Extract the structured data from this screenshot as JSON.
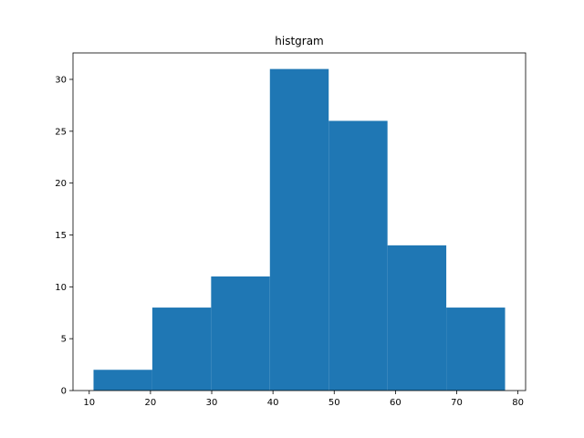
{
  "chart_data": {
    "type": "bar",
    "title": "histgram",
    "xlabel": "",
    "ylabel": "",
    "bins": [
      {
        "start": 10.7,
        "end": 20.3,
        "count": 2
      },
      {
        "start": 20.3,
        "end": 29.9,
        "count": 8
      },
      {
        "start": 29.9,
        "end": 39.5,
        "count": 11
      },
      {
        "start": 39.5,
        "end": 49.1,
        "count": 31
      },
      {
        "start": 49.1,
        "end": 58.7,
        "count": 26
      },
      {
        "start": 58.7,
        "end": 68.3,
        "count": 14
      },
      {
        "start": 68.3,
        "end": 77.9,
        "count": 8
      }
    ],
    "xlim": [
      7.35,
      81.25
    ],
    "ylim": [
      0,
      32.55
    ],
    "xticks": [
      10,
      20,
      30,
      40,
      50,
      60,
      70,
      80
    ],
    "yticks": [
      0,
      5,
      10,
      15,
      20,
      25,
      30
    ],
    "bar_color": "#1f77b4",
    "grid": false,
    "legend": "none"
  }
}
